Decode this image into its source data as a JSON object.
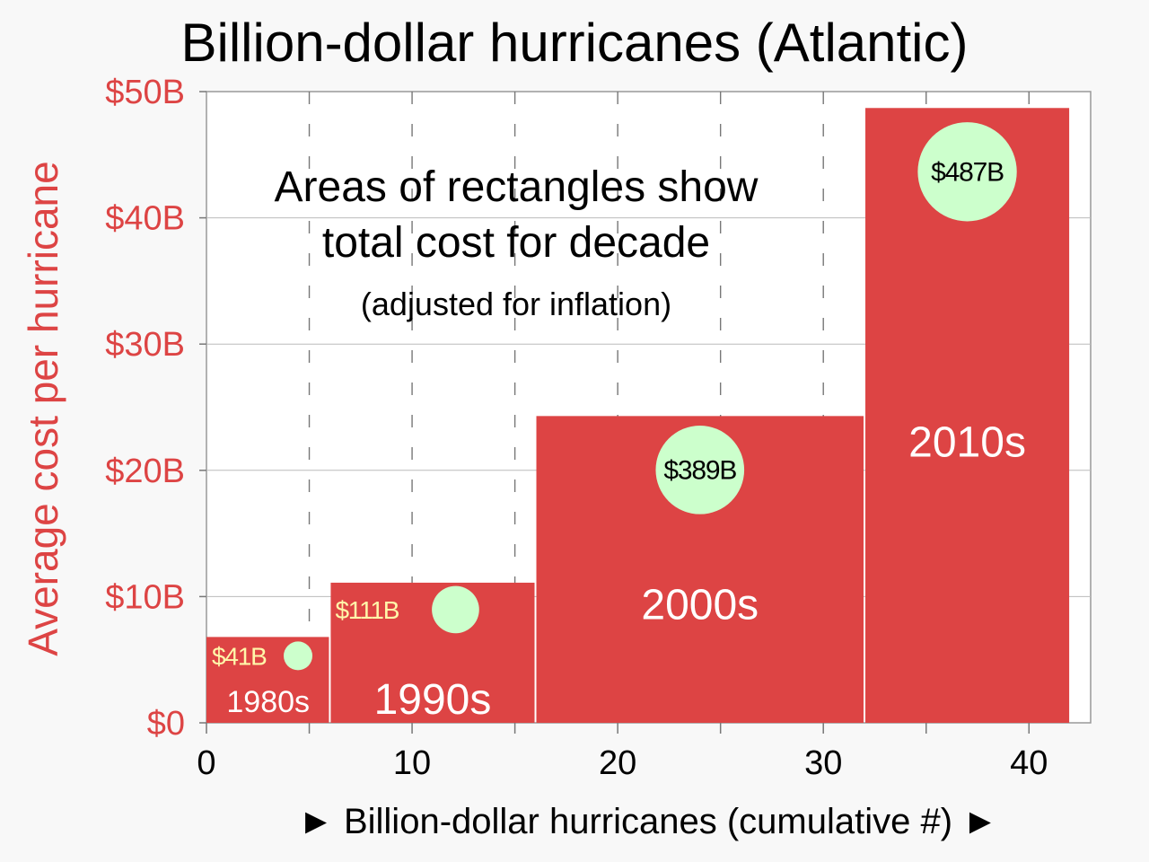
{
  "chart_data": {
    "type": "bar",
    "title": "Billion-dollar hurricanes (Atlantic)",
    "xlabel": "► Billion-dollar hurricanes (cumulative #) ►",
    "ylabel": "Average cost per hurricane",
    "xlim": [
      0,
      43
    ],
    "ylim": [
      0,
      50
    ],
    "x_ticks": [
      0,
      10,
      20,
      30,
      40
    ],
    "y_ticks": [
      0,
      10,
      20,
      30,
      40,
      50
    ],
    "y_tick_labels": [
      "$0",
      "$10B",
      "$20B",
      "$30B",
      "$40B",
      "$50B"
    ],
    "grid": true,
    "annotation": {
      "line1": "Areas of rectangles show",
      "line2": "total cost for decade",
      "line3": "(adjusted for inflation)"
    },
    "colors": {
      "bar": "#dd4444",
      "circle": "#ccffcc",
      "axis_text_y": "#dd4444",
      "label_small_bar": "#fff7aa"
    },
    "series": [
      {
        "decade": "1980s",
        "x_start": 0,
        "x_end": 6,
        "avg_cost": 6.8,
        "total_cost_billion": 41,
        "total_cost_label": "$41B"
      },
      {
        "decade": "1990s",
        "x_start": 6,
        "x_end": 16,
        "avg_cost": 11.1,
        "total_cost_billion": 111,
        "total_cost_label": "$111B"
      },
      {
        "decade": "2000s",
        "x_start": 16,
        "x_end": 32,
        "avg_cost": 24.3,
        "total_cost_billion": 389,
        "total_cost_label": "$389B"
      },
      {
        "decade": "2010s",
        "x_start": 32,
        "x_end": 42,
        "avg_cost": 48.7,
        "total_cost_billion": 487,
        "total_cost_label": "$487B"
      }
    ]
  }
}
